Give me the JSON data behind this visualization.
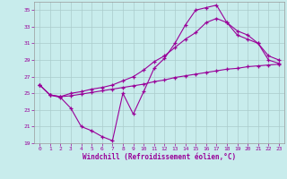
{
  "xlabel": "Windchill (Refroidissement éolien,°C)",
  "bg_color": "#c8ecec",
  "line_color": "#990099",
  "grid_color": "#aacccc",
  "xlim": [
    -0.5,
    23.5
  ],
  "ylim": [
    19,
    36
  ],
  "xticks": [
    0,
    1,
    2,
    3,
    4,
    5,
    6,
    7,
    8,
    9,
    10,
    11,
    12,
    13,
    14,
    15,
    16,
    17,
    18,
    19,
    20,
    21,
    22,
    23
  ],
  "yticks": [
    19,
    21,
    23,
    25,
    27,
    29,
    31,
    33,
    35
  ],
  "line1_x": [
    0,
    1,
    2,
    3,
    4,
    5,
    6,
    7,
    8,
    9,
    10,
    11,
    12,
    13,
    14,
    15,
    16,
    17,
    18,
    19,
    20,
    21,
    22,
    23
  ],
  "line1_y": [
    26.0,
    24.8,
    24.5,
    23.2,
    21.0,
    20.5,
    19.8,
    19.3,
    25.0,
    22.5,
    25.2,
    28.0,
    29.2,
    31.0,
    33.2,
    35.0,
    35.3,
    35.6,
    33.5,
    32.0,
    31.5,
    31.0,
    29.0,
    28.6
  ],
  "line2_x": [
    0,
    1,
    2,
    3,
    4,
    5,
    6,
    7,
    8,
    9,
    10,
    11,
    12,
    13,
    14,
    15,
    16,
    17,
    18,
    19,
    20,
    21,
    22,
    23
  ],
  "line2_y": [
    26.0,
    24.8,
    24.6,
    24.7,
    24.9,
    25.1,
    25.3,
    25.5,
    25.7,
    25.9,
    26.1,
    26.4,
    26.6,
    26.9,
    27.1,
    27.3,
    27.5,
    27.7,
    27.9,
    28.0,
    28.2,
    28.3,
    28.4,
    28.5
  ],
  "line3_x": [
    0,
    1,
    2,
    3,
    4,
    5,
    6,
    7,
    8,
    9,
    10,
    11,
    12,
    13,
    14,
    15,
    16,
    17,
    18,
    19,
    20,
    21,
    22,
    23
  ],
  "line3_y": [
    26.0,
    24.8,
    24.6,
    25.0,
    25.2,
    25.5,
    25.7,
    26.0,
    26.5,
    27.0,
    27.8,
    28.8,
    29.5,
    30.5,
    31.5,
    32.3,
    33.5,
    34.0,
    33.5,
    32.5,
    32.0,
    31.0,
    29.5,
    29.0
  ]
}
